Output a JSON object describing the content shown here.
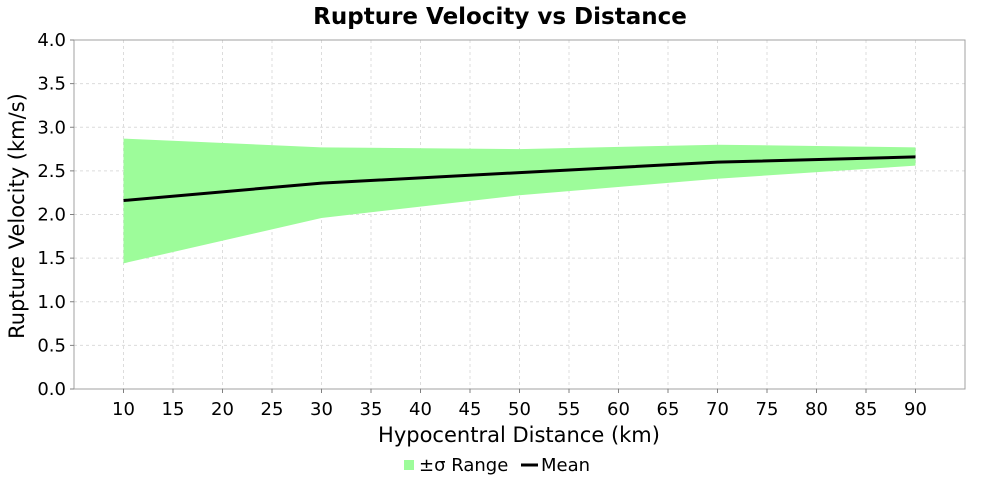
{
  "chart_data": {
    "type": "area",
    "title": "Rupture Velocity vs Distance",
    "xlabel": "Hypocentral Distance (km)",
    "ylabel": "Rupture Velocity (km/s)",
    "xlim": [
      5,
      95
    ],
    "ylim": [
      0.0,
      4.0
    ],
    "xticks": [
      "10",
      "15",
      "20",
      "25",
      "30",
      "35",
      "40",
      "45",
      "50",
      "55",
      "60",
      "65",
      "70",
      "75",
      "80",
      "85",
      "90"
    ],
    "yticks": [
      "0.0",
      "0.5",
      "1.0",
      "1.5",
      "2.0",
      "2.5",
      "3.0",
      "3.5",
      "4.0"
    ],
    "grid": true,
    "legend_position": "bottom-center",
    "x": [
      10,
      30,
      50,
      70,
      90
    ],
    "series": [
      {
        "name": "±σ Range",
        "kind": "band",
        "color": "#9dfc9a",
        "lower": [
          1.44,
          1.96,
          2.22,
          2.41,
          2.56
        ],
        "upper": [
          2.87,
          2.77,
          2.75,
          2.8,
          2.77
        ]
      },
      {
        "name": "Mean",
        "kind": "line",
        "color": "#000000",
        "values": [
          2.16,
          2.36,
          2.48,
          2.6,
          2.66
        ]
      }
    ]
  }
}
